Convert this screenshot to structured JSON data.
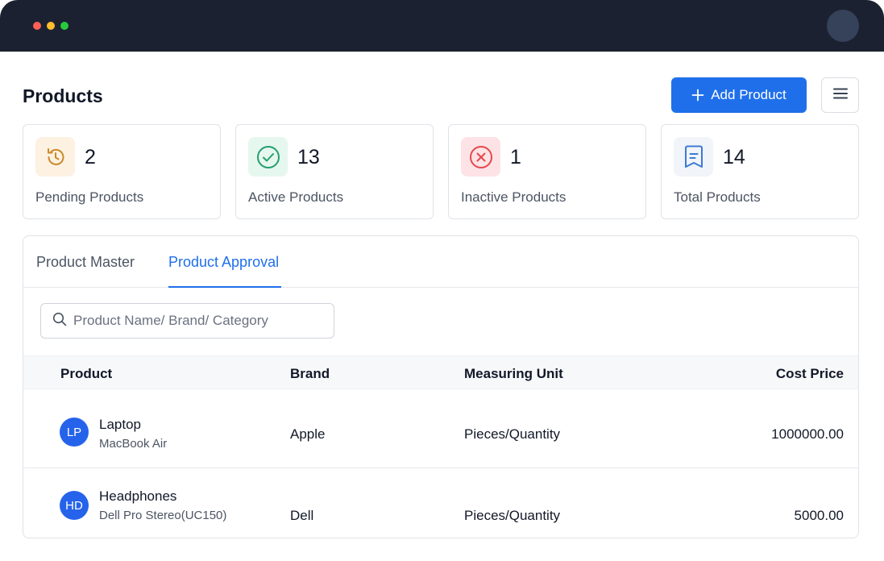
{
  "window": {
    "dot_colors": [
      "#ff5f56",
      "#ffbd2e",
      "#27c93f"
    ]
  },
  "header": {
    "title": "Products",
    "add_button_label": "Add Product",
    "add_button_icon": "plus-icon",
    "menu_icon": "hamburger-menu-icon"
  },
  "stats": [
    {
      "value": "2",
      "label": "Pending Products",
      "icon": "history-icon",
      "icon_bg": "#fdf1e1",
      "icon_color": "#c98a2a"
    },
    {
      "value": "13",
      "label": "Active Products",
      "icon": "check-circle-icon",
      "icon_bg": "#e6f7ef",
      "icon_color": "#22a06b"
    },
    {
      "value": "1",
      "label": "Inactive Products",
      "icon": "x-circle-icon",
      "icon_bg": "#fde3e5",
      "icon_color": "#e5484d"
    },
    {
      "value": "14",
      "label": "Total Products",
      "icon": "receipt-icon",
      "icon_bg": "#f1f4f8",
      "icon_color": "#3b7bd6"
    }
  ],
  "tabs": [
    {
      "label": "Product Master",
      "active": false
    },
    {
      "label": "Product Approval",
      "active": true
    }
  ],
  "search": {
    "placeholder": "Product Name/ Brand/ Category",
    "value": ""
  },
  "table": {
    "columns": [
      "Product",
      "Brand",
      "Measuring Unit",
      "Cost Price"
    ],
    "rows": [
      {
        "initials": "LP",
        "name": "Laptop",
        "model": "MacBook Air",
        "brand": "Apple",
        "unit": "Pieces/Quantity",
        "cost": "1000000.00"
      },
      {
        "initials": "HD",
        "name": "Headphones",
        "model": "Dell Pro Stereo(UC150)",
        "brand": "Dell",
        "unit": "Pieces/Quantity",
        "cost": "5000.00"
      }
    ]
  },
  "colors": {
    "accent": "#1f6feb",
    "titlebar": "#1b2130"
  }
}
